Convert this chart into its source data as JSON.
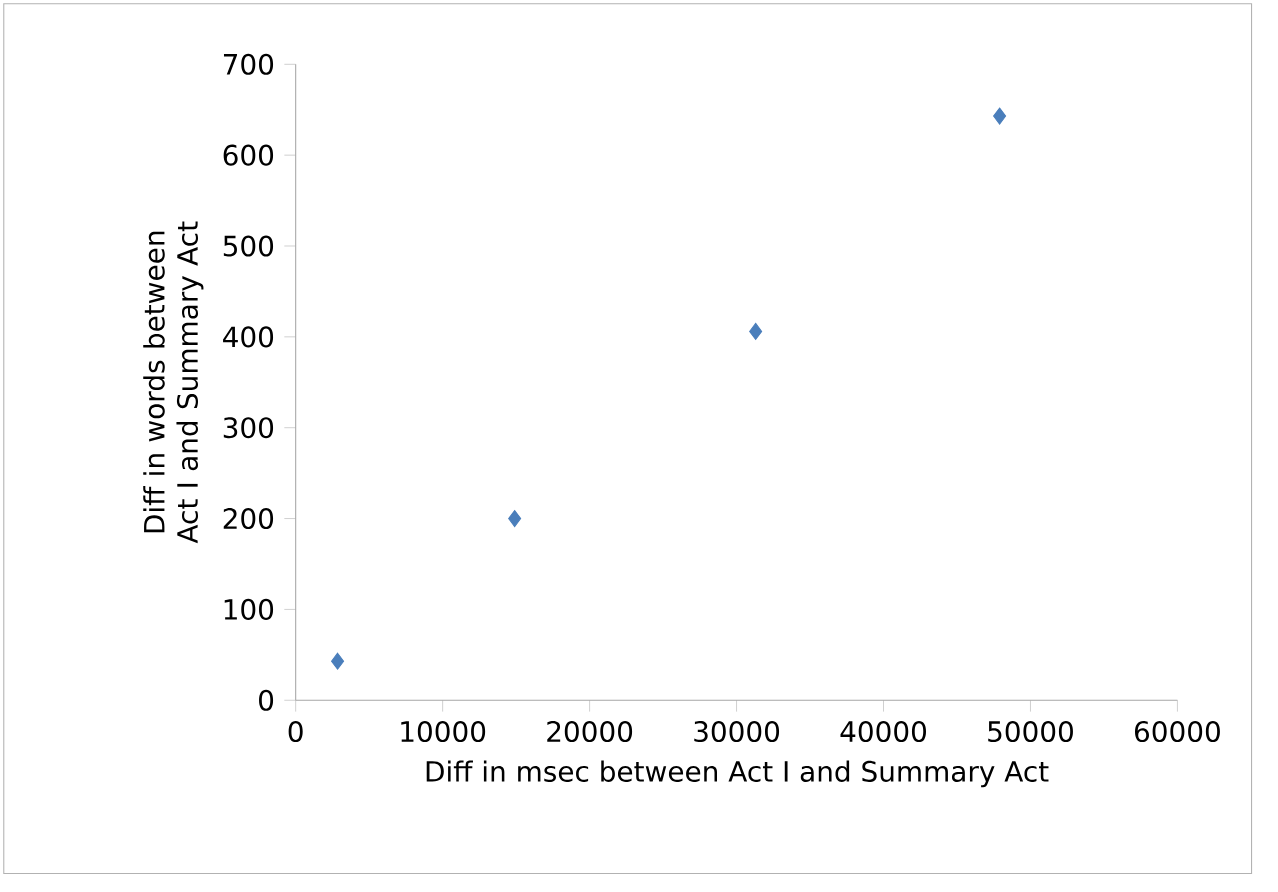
{
  "chart_data": {
    "type": "scatter",
    "xlabel": "Diff in msec between Act I and Summary Act",
    "ylabel": "Diff in words between Act I and Summary Act",
    "x": [
      2850,
      14900,
      31300,
      47900
    ],
    "values": [
      43,
      200,
      406,
      643
    ],
    "color": "#4a7ebb",
    "marker": "diamond",
    "xlim": [
      0,
      60000
    ],
    "xticks": [
      0,
      10000,
      20000,
      30000,
      40000,
      50000,
      60000
    ],
    "ylim": [
      0,
      700
    ],
    "yticks": [
      0,
      100,
      200,
      300,
      400,
      500,
      600,
      700
    ]
  }
}
